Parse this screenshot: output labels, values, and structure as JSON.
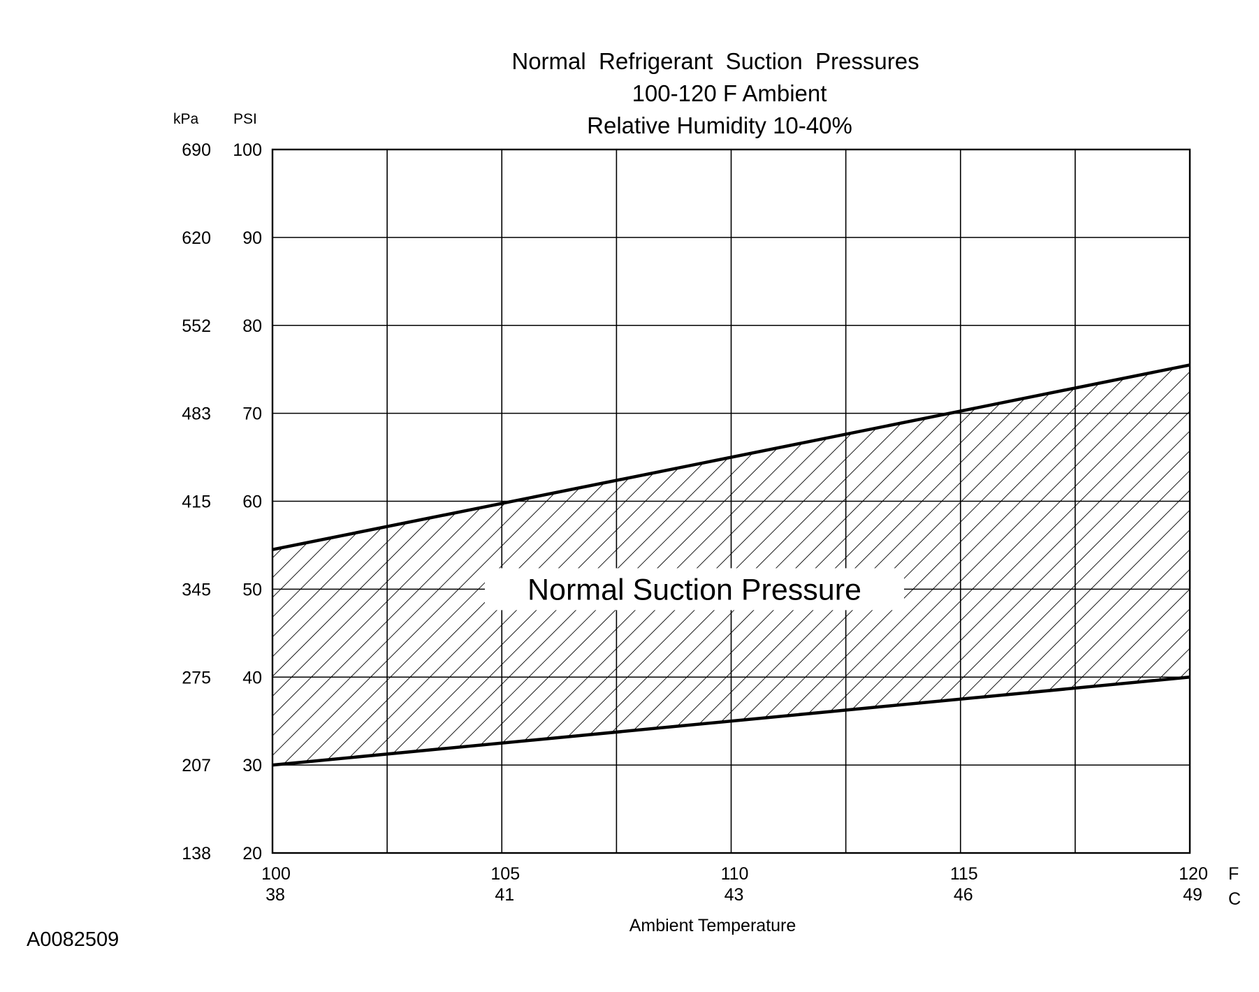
{
  "chart_data": {
    "type": "area",
    "title": [
      "Normal  Refrigerant  Suction  Pressures",
      "100-120 F Ambient",
      "Relative Humidity 10-40%"
    ],
    "xlabel": "Ambient Temperature",
    "x_unit_primary": "F",
    "x_unit_secondary": "C",
    "y_unit_primary": "PSI",
    "y_unit_secondary": "kPa",
    "xlim": [
      100,
      120
    ],
    "ylim": [
      20,
      100
    ],
    "x_ticks": [
      {
        "f": 100,
        "c": "38"
      },
      {
        "f": 105,
        "c": "41"
      },
      {
        "f": 110,
        "c": "43"
      },
      {
        "f": 115,
        "c": "46"
      },
      {
        "f": 120,
        "c": "49"
      }
    ],
    "y_ticks": [
      {
        "psi": 100,
        "kpa": "690"
      },
      {
        "psi": 90,
        "kpa": "620"
      },
      {
        "psi": 80,
        "kpa": "552"
      },
      {
        "psi": 70,
        "kpa": "483"
      },
      {
        "psi": 60,
        "kpa": "415"
      },
      {
        "psi": 50,
        "kpa": "345"
      },
      {
        "psi": 40,
        "kpa": "275"
      },
      {
        "psi": 30,
        "kpa": "207"
      },
      {
        "psi": 20,
        "kpa": "138"
      }
    ],
    "x_gridlines": [
      100,
      102.5,
      105,
      107.5,
      110,
      112.5,
      115,
      117.5,
      120
    ],
    "y_gridlines": [
      20,
      30,
      40,
      50,
      60,
      70,
      80,
      90,
      100
    ],
    "grid": true,
    "band": {
      "label": "Normal Suction Pressure",
      "label_position": [
        109.2,
        50
      ],
      "upper": {
        "x": [
          100,
          120
        ],
        "y": [
          54.5,
          75.5
        ]
      },
      "lower": {
        "x": [
          100,
          120
        ],
        "y": [
          30,
          40
        ]
      },
      "fill": "diagonal-hatch"
    }
  },
  "figure_id": "A0082509",
  "colors": {
    "ink": "#000000",
    "background": "#ffffff"
  }
}
